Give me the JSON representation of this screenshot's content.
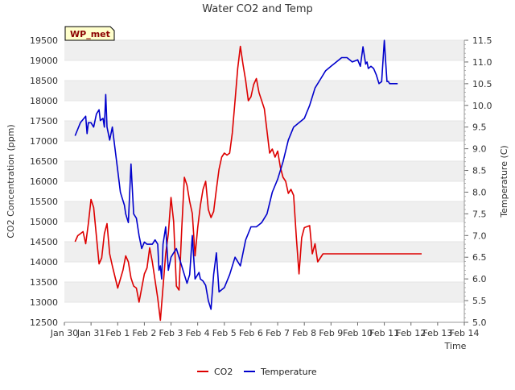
{
  "chart_data": {
    "type": "line",
    "title": "Water CO2 and Temp",
    "xlabel": "Time",
    "ylabel_left": "CO2 Concentration (ppm)",
    "ylabel_right": "Temperature (C)",
    "site_label": "WP_met",
    "x_ticks": [
      "Jan 30",
      "Jan 31",
      "Feb 1",
      "Feb 2",
      "Feb 3",
      "Feb 4",
      "Feb 5",
      "Feb 6",
      "Feb 7",
      "Feb 8",
      "Feb 9",
      "Feb 10",
      "Feb 11",
      "Feb 12",
      "Feb 13",
      "Feb 14"
    ],
    "xlim": [
      0,
      15
    ],
    "ylim_left": [
      12500,
      19500
    ],
    "yticks_left": [
      12500,
      13000,
      13500,
      14000,
      14500,
      15000,
      15500,
      16000,
      16500,
      17000,
      17500,
      18000,
      18500,
      19000,
      19500
    ],
    "ylim_right": [
      5.0,
      11.5
    ],
    "yticks_right": [
      "5.0",
      "5.5",
      "6.0",
      "6.5",
      "7.0",
      "7.5",
      "8.0",
      "8.5",
      "9.0",
      "9.5",
      "10.0",
      "10.5",
      "11.0",
      "11.5"
    ],
    "grid": "horizontal bands",
    "legend_position": "bottom-center",
    "series": [
      {
        "name": "CO2",
        "axis": "left",
        "color": "#dd0000",
        "x": [
          0.4,
          0.5,
          0.7,
          0.8,
          0.9,
          1.0,
          1.1,
          1.3,
          1.4,
          1.5,
          1.6,
          1.7,
          1.8,
          2.0,
          2.2,
          2.3,
          2.4,
          2.5,
          2.6,
          2.7,
          2.8,
          3.0,
          3.1,
          3.2,
          3.3,
          3.5,
          3.6,
          3.8,
          3.9,
          4.0,
          4.1,
          4.2,
          4.3,
          4.4,
          4.5,
          4.6,
          4.7,
          4.8,
          4.9,
          5.0,
          5.1,
          5.2,
          5.3,
          5.4,
          5.5,
          5.6,
          5.7,
          5.8,
          5.9,
          6.0,
          6.1,
          6.2,
          6.3,
          6.4,
          6.5,
          6.6,
          6.7,
          6.8,
          6.9,
          7.0,
          7.1,
          7.2,
          7.3,
          7.5,
          7.7,
          7.8,
          7.9,
          8.0,
          8.1,
          8.2,
          8.3,
          8.4,
          8.5,
          8.6,
          8.7,
          8.8,
          8.9,
          9.0,
          9.2,
          9.3,
          9.4,
          9.5,
          9.6,
          9.7,
          9.8,
          9.9,
          10.0,
          10.1,
          10.2,
          10.3,
          10.4,
          10.5,
          10.6,
          10.7,
          10.8,
          10.9,
          11.0,
          11.1,
          11.2,
          11.3,
          11.4,
          11.5,
          11.6,
          11.7,
          11.8,
          11.9,
          12.0,
          12.1,
          12.2,
          12.3,
          12.4,
          12.5,
          12.6,
          12.7,
          12.8,
          12.9,
          13.0,
          13.1,
          13.2,
          13.3,
          13.4
        ],
        "values": [
          14500,
          14650,
          14750,
          14450,
          14950,
          15550,
          15350,
          13950,
          14100,
          14700,
          14950,
          14200,
          13900,
          13350,
          13800,
          14150,
          14000,
          13600,
          13400,
          13350,
          13000,
          13700,
          13850,
          14350,
          14000,
          13100,
          12550,
          14200,
          14700,
          15600,
          15000,
          13400,
          13300,
          14800,
          16100,
          15900,
          15500,
          15200,
          14150,
          14850,
          15400,
          15800,
          16000,
          15300,
          15100,
          15250,
          15800,
          16300,
          16600,
          16700,
          16650,
          16700,
          17200,
          18000,
          18800,
          19350,
          18900,
          18500,
          18000,
          18100,
          18400,
          18550,
          18200,
          17800,
          16700,
          16800,
          16600,
          16750,
          16350,
          16100,
          16000,
          15700,
          15800,
          15650,
          14600,
          13700,
          14600,
          14850,
          14900,
          14200,
          14450,
          14000,
          14100,
          14200,
          14200,
          14200,
          14200,
          14200,
          14200,
          14200,
          14200,
          14200,
          14200,
          14200,
          14200,
          14200,
          14200,
          14200,
          14200,
          14200,
          14200,
          14200,
          14200,
          14200,
          14200,
          14200,
          14200,
          14200,
          14200,
          14200,
          14200,
          14200,
          14200,
          14200,
          14200,
          14200,
          14200,
          14200,
          14200,
          14200,
          14200
        ]
      },
      {
        "name": "Temperature",
        "axis": "right",
        "color": "#0000cc",
        "x": [
          0.4,
          0.6,
          0.8,
          0.85,
          0.9,
          1.0,
          1.1,
          1.2,
          1.3,
          1.35,
          1.45,
          1.5,
          1.55,
          1.6,
          1.7,
          1.8,
          2.0,
          2.1,
          2.15,
          2.25,
          2.3,
          2.4,
          2.5,
          2.6,
          2.7,
          2.8,
          2.9,
          3.0,
          3.1,
          3.2,
          3.3,
          3.4,
          3.5,
          3.55,
          3.6,
          3.65,
          3.7,
          3.8,
          3.9,
          4.0,
          4.1,
          4.2,
          4.3,
          4.4,
          4.5,
          4.6,
          4.7,
          4.8,
          4.9,
          5.0,
          5.05,
          5.1,
          5.2,
          5.3,
          5.4,
          5.5,
          5.6,
          5.7,
          5.8,
          6.0,
          6.2,
          6.4,
          6.6,
          6.8,
          7.0,
          7.2,
          7.4,
          7.6,
          7.8,
          8.0,
          8.2,
          8.4,
          8.6,
          8.8,
          9.0,
          9.2,
          9.4,
          9.6,
          9.8,
          10.0,
          10.2,
          10.4,
          10.6,
          10.8,
          11.0,
          11.1,
          11.2,
          11.3,
          11.35,
          11.4,
          11.5,
          11.6,
          11.7,
          11.8,
          11.9,
          12.0,
          12.05,
          12.1,
          12.15,
          12.2,
          12.3,
          12.4,
          12.5
        ],
        "values": [
          9.3,
          9.6,
          9.75,
          9.35,
          9.6,
          9.6,
          9.5,
          9.8,
          9.9,
          9.65,
          9.7,
          9.5,
          10.25,
          9.5,
          9.2,
          9.5,
          8.5,
          8.0,
          7.9,
          7.7,
          7.5,
          7.3,
          8.65,
          7.5,
          7.4,
          7.0,
          6.7,
          6.85,
          6.8,
          6.8,
          6.8,
          6.9,
          6.8,
          6.2,
          6.3,
          6.0,
          6.8,
          7.2,
          6.2,
          6.5,
          6.6,
          6.7,
          6.5,
          6.3,
          6.1,
          5.9,
          6.1,
          7.0,
          6.0,
          6.1,
          6.15,
          6.0,
          5.95,
          5.85,
          5.5,
          5.3,
          6.1,
          6.6,
          5.7,
          5.8,
          6.1,
          6.5,
          6.3,
          6.9,
          7.2,
          7.2,
          7.3,
          7.5,
          8.0,
          8.3,
          8.7,
          9.2,
          9.5,
          9.6,
          9.7,
          10.0,
          10.4,
          10.6,
          10.8,
          10.9,
          11.0,
          11.1,
          11.1,
          11.0,
          11.05,
          10.9,
          11.35,
          10.95,
          11.0,
          10.85,
          10.9,
          10.85,
          10.7,
          10.5,
          10.55,
          11.5,
          11.0,
          10.55,
          10.55,
          10.5,
          10.5,
          10.5,
          10.5
        ]
      }
    ]
  }
}
